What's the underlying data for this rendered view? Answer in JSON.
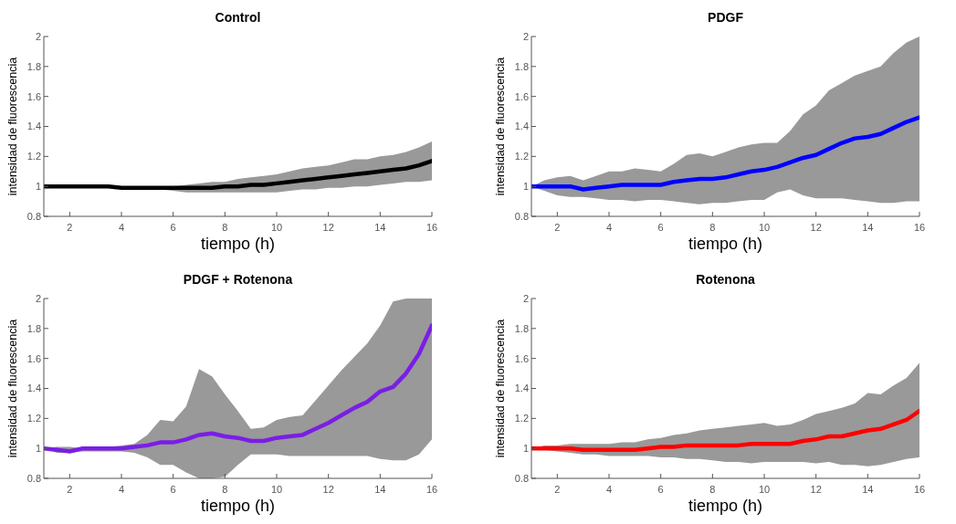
{
  "chart_data": [
    {
      "type": "line",
      "title": "Control",
      "xlabel": "tiempo (h)",
      "ylabel": "intensidad de fluorescencia",
      "xlim": [
        1,
        16
      ],
      "ylim": [
        0.8,
        2
      ],
      "xticks": [
        2,
        4,
        6,
        8,
        10,
        12,
        14,
        16
      ],
      "yticks": [
        0.8,
        1,
        1.2,
        1.4,
        1.6,
        1.8,
        2
      ],
      "x": [
        1,
        1.5,
        2,
        2.5,
        3,
        3.5,
        4,
        4.5,
        5,
        5.5,
        6,
        6.5,
        7,
        7.5,
        8,
        8.5,
        9,
        9.5,
        10,
        10.5,
        11,
        11.5,
        12,
        12.5,
        13,
        13.5,
        14,
        14.5,
        15,
        15.5,
        16
      ],
      "series": [
        {
          "color": "#000000",
          "values": [
            1.0,
            1.0,
            1.0,
            1.0,
            1.0,
            1.0,
            0.99,
            0.99,
            0.99,
            0.99,
            0.99,
            0.99,
            0.99,
            0.99,
            1.0,
            1.0,
            1.01,
            1.01,
            1.02,
            1.03,
            1.04,
            1.05,
            1.06,
            1.07,
            1.08,
            1.09,
            1.1,
            1.11,
            1.12,
            1.14,
            1.17
          ],
          "upper": [
            1.0,
            1.0,
            1.0,
            1.0,
            1.0,
            1.0,
            1.0,
            1.0,
            1.0,
            1.0,
            1.0,
            1.01,
            1.02,
            1.03,
            1.03,
            1.05,
            1.06,
            1.07,
            1.08,
            1.1,
            1.12,
            1.13,
            1.14,
            1.16,
            1.18,
            1.18,
            1.2,
            1.21,
            1.23,
            1.26,
            1.3
          ],
          "lower": [
            1.0,
            0.99,
            0.99,
            0.99,
            0.99,
            0.99,
            0.99,
            0.99,
            0.98,
            0.98,
            0.97,
            0.96,
            0.96,
            0.96,
            0.96,
            0.96,
            0.96,
            0.96,
            0.96,
            0.97,
            0.98,
            0.98,
            0.99,
            0.99,
            1.0,
            1.0,
            1.01,
            1.02,
            1.03,
            1.03,
            1.04
          ]
        }
      ]
    },
    {
      "type": "line",
      "title": "PDGF",
      "xlabel": "tiempo (h)",
      "ylabel": "intensidad de fluorescencia",
      "xlim": [
        1,
        16
      ],
      "ylim": [
        0.8,
        2
      ],
      "xticks": [
        2,
        4,
        6,
        8,
        10,
        12,
        14,
        16
      ],
      "yticks": [
        0.8,
        1,
        1.2,
        1.4,
        1.6,
        1.8,
        2
      ],
      "x": [
        1,
        1.5,
        2,
        2.5,
        3,
        3.5,
        4,
        4.5,
        5,
        5.5,
        6,
        6.5,
        7,
        7.5,
        8,
        8.5,
        9,
        9.5,
        10,
        10.5,
        11,
        11.5,
        12,
        12.5,
        13,
        13.5,
        14,
        14.5,
        15,
        15.5,
        16
      ],
      "series": [
        {
          "color": "#0000ff",
          "values": [
            1.0,
            1.0,
            1.0,
            1.0,
            0.98,
            0.99,
            1.0,
            1.01,
            1.01,
            1.01,
            1.01,
            1.03,
            1.04,
            1.05,
            1.05,
            1.06,
            1.08,
            1.1,
            1.11,
            1.13,
            1.16,
            1.19,
            1.21,
            1.25,
            1.29,
            1.32,
            1.33,
            1.35,
            1.39,
            1.43,
            1.46
          ],
          "upper": [
            1.0,
            1.04,
            1.06,
            1.07,
            1.04,
            1.07,
            1.1,
            1.1,
            1.12,
            1.11,
            1.1,
            1.15,
            1.21,
            1.22,
            1.2,
            1.23,
            1.26,
            1.28,
            1.29,
            1.29,
            1.37,
            1.48,
            1.54,
            1.64,
            1.69,
            1.74,
            1.77,
            1.8,
            1.89,
            1.96,
            2.0
          ],
          "lower": [
            1.0,
            0.97,
            0.94,
            0.93,
            0.93,
            0.92,
            0.91,
            0.91,
            0.9,
            0.91,
            0.91,
            0.9,
            0.89,
            0.88,
            0.89,
            0.89,
            0.9,
            0.91,
            0.91,
            0.96,
            0.98,
            0.94,
            0.92,
            0.92,
            0.92,
            0.91,
            0.9,
            0.89,
            0.89,
            0.9,
            0.9
          ]
        }
      ]
    },
    {
      "type": "line",
      "title": "PDGF + Rotenona",
      "xlabel": "tiempo (h)",
      "ylabel": "intensidad de fluorescencia",
      "xlim": [
        1,
        16
      ],
      "ylim": [
        0.8,
        2
      ],
      "xticks": [
        2,
        4,
        6,
        8,
        10,
        12,
        14,
        16
      ],
      "yticks": [
        0.8,
        1,
        1.2,
        1.4,
        1.6,
        1.8,
        2
      ],
      "x": [
        1,
        1.5,
        2,
        2.5,
        3,
        3.5,
        4,
        4.5,
        5,
        5.5,
        6,
        6.5,
        7,
        7.5,
        8,
        8.5,
        9,
        9.5,
        10,
        10.5,
        11,
        11.5,
        12,
        12.5,
        13,
        13.5,
        14,
        14.5,
        15,
        15.5,
        16
      ],
      "series": [
        {
          "color": "#7a1ee6",
          "values": [
            1.0,
            0.99,
            0.98,
            1.0,
            1.0,
            1.0,
            1.0,
            1.01,
            1.02,
            1.04,
            1.04,
            1.06,
            1.09,
            1.1,
            1.08,
            1.07,
            1.05,
            1.05,
            1.07,
            1.08,
            1.09,
            1.13,
            1.17,
            1.22,
            1.27,
            1.31,
            1.38,
            1.41,
            1.5,
            1.63,
            1.82
          ],
          "upper": [
            1.0,
            1.01,
            1.01,
            1.0,
            1.0,
            1.01,
            1.02,
            1.03,
            1.09,
            1.19,
            1.18,
            1.28,
            1.53,
            1.48,
            1.36,
            1.25,
            1.13,
            1.14,
            1.19,
            1.21,
            1.22,
            1.32,
            1.42,
            1.52,
            1.61,
            1.7,
            1.82,
            1.98,
            2.0,
            2.0,
            2.0
          ],
          "lower": [
            1.0,
            0.97,
            0.97,
            0.98,
            0.98,
            0.98,
            0.98,
            0.97,
            0.94,
            0.89,
            0.89,
            0.84,
            0.8,
            0.8,
            0.81,
            0.89,
            0.96,
            0.96,
            0.96,
            0.95,
            0.95,
            0.95,
            0.95,
            0.95,
            0.95,
            0.95,
            0.93,
            0.92,
            0.92,
            0.96,
            1.06
          ]
        }
      ]
    },
    {
      "type": "line",
      "title": "Rotenona",
      "xlabel": "tiempo (h)",
      "ylabel": "intensidad de fluorescencia",
      "xlim": [
        1,
        16
      ],
      "ylim": [
        0.8,
        2
      ],
      "xticks": [
        2,
        4,
        6,
        8,
        10,
        12,
        14,
        16
      ],
      "yticks": [
        0.8,
        1,
        1.2,
        1.4,
        1.6,
        1.8,
        2
      ],
      "x": [
        1,
        1.5,
        2,
        2.5,
        3,
        3.5,
        4,
        4.5,
        5,
        5.5,
        6,
        6.5,
        7,
        7.5,
        8,
        8.5,
        9,
        9.5,
        10,
        10.5,
        11,
        11.5,
        12,
        12.5,
        13,
        13.5,
        14,
        14.5,
        15,
        15.5,
        16
      ],
      "series": [
        {
          "color": "#ff0000",
          "values": [
            1.0,
            1.0,
            1.0,
            1.0,
            0.99,
            0.99,
            0.99,
            0.99,
            0.99,
            1.0,
            1.01,
            1.01,
            1.02,
            1.02,
            1.02,
            1.02,
            1.02,
            1.03,
            1.03,
            1.03,
            1.03,
            1.05,
            1.06,
            1.08,
            1.08,
            1.1,
            1.12,
            1.13,
            1.16,
            1.19,
            1.25
          ],
          "upper": [
            1.0,
            1.02,
            1.02,
            1.03,
            1.03,
            1.03,
            1.03,
            1.04,
            1.04,
            1.06,
            1.07,
            1.09,
            1.1,
            1.12,
            1.13,
            1.14,
            1.15,
            1.16,
            1.17,
            1.15,
            1.16,
            1.19,
            1.23,
            1.25,
            1.27,
            1.3,
            1.37,
            1.36,
            1.42,
            1.47,
            1.57
          ],
          "lower": [
            1.0,
            0.99,
            0.98,
            0.97,
            0.96,
            0.96,
            0.95,
            0.95,
            0.95,
            0.95,
            0.94,
            0.94,
            0.93,
            0.93,
            0.92,
            0.91,
            0.91,
            0.9,
            0.91,
            0.91,
            0.91,
            0.91,
            0.9,
            0.91,
            0.89,
            0.89,
            0.88,
            0.89,
            0.91,
            0.93,
            0.94
          ]
        }
      ]
    }
  ]
}
